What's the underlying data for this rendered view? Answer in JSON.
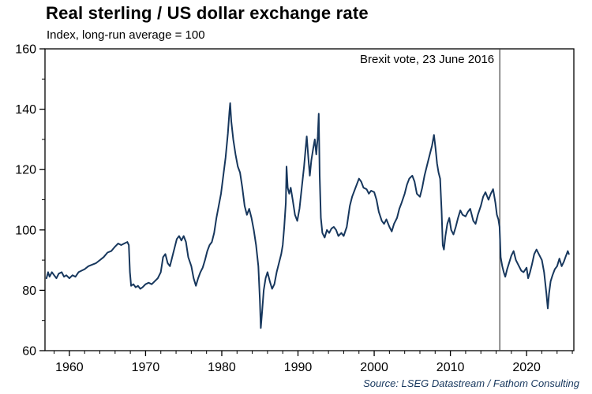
{
  "title": "Real sterling / US dollar exchange rate",
  "subtitle": "Index, long-run average = 100",
  "source": "Source: LSEG Datastream / Fathom Consulting",
  "colors": {
    "series_line": "#17375d",
    "axis": "#000000",
    "tick_label": "#000000",
    "event_line": "#444444",
    "annotation_text": "#000000",
    "source_text": "#17375d"
  },
  "chart_data": {
    "type": "line",
    "title": "Real sterling / US dollar exchange rate",
    "subtitle": "Index, long-run average = 100",
    "xlabel": "",
    "ylabel": "",
    "xlim": [
      1956.8,
      2026.2
    ],
    "ylim": [
      60,
      160
    ],
    "x_ticks": [
      1960,
      1970,
      1980,
      1990,
      2000,
      2010,
      2020
    ],
    "y_ticks": [
      60,
      80,
      100,
      120,
      140,
      160
    ],
    "x_minor_step": 2,
    "y_minor_step": 10,
    "grid": false,
    "legend": "none",
    "event_line": {
      "x": 2016.48,
      "label": "Brexit vote, 23 June 2016"
    },
    "series": [
      {
        "name": "Real sterling / US dollar exchange rate (index)",
        "points": [
          [
            1957.0,
            84
          ],
          [
            1957.2,
            86
          ],
          [
            1957.4,
            84.5
          ],
          [
            1957.7,
            86
          ],
          [
            1958.0,
            85
          ],
          [
            1958.3,
            84
          ],
          [
            1958.6,
            85.5
          ],
          [
            1959.0,
            86
          ],
          [
            1959.3,
            84.5
          ],
          [
            1959.6,
            85
          ],
          [
            1960.0,
            84
          ],
          [
            1960.4,
            85
          ],
          [
            1960.8,
            84.5
          ],
          [
            1961.2,
            86
          ],
          [
            1961.6,
            86.5
          ],
          [
            1962.0,
            87
          ],
          [
            1962.5,
            88
          ],
          [
            1963.0,
            88.5
          ],
          [
            1963.5,
            89
          ],
          [
            1964.0,
            90
          ],
          [
            1964.5,
            91
          ],
          [
            1965.0,
            92.5
          ],
          [
            1965.5,
            93
          ],
          [
            1966.0,
            94.5
          ],
          [
            1966.4,
            95.5
          ],
          [
            1966.8,
            95
          ],
          [
            1967.2,
            95.5
          ],
          [
            1967.6,
            96
          ],
          [
            1967.8,
            95
          ],
          [
            1967.95,
            86
          ],
          [
            1968.1,
            81.5
          ],
          [
            1968.4,
            82
          ],
          [
            1968.7,
            81
          ],
          [
            1969.0,
            81.5
          ],
          [
            1969.3,
            80.5
          ],
          [
            1969.6,
            81
          ],
          [
            1970.0,
            82
          ],
          [
            1970.4,
            82.5
          ],
          [
            1970.8,
            82
          ],
          [
            1971.2,
            83
          ],
          [
            1971.6,
            84
          ],
          [
            1972.0,
            86
          ],
          [
            1972.3,
            91
          ],
          [
            1972.6,
            92
          ],
          [
            1972.9,
            89
          ],
          [
            1973.2,
            88
          ],
          [
            1973.5,
            91
          ],
          [
            1973.8,
            94
          ],
          [
            1974.1,
            97
          ],
          [
            1974.4,
            98
          ],
          [
            1974.7,
            96.5
          ],
          [
            1975.0,
            98
          ],
          [
            1975.3,
            96
          ],
          [
            1975.6,
            91
          ],
          [
            1976.0,
            88
          ],
          [
            1976.3,
            84
          ],
          [
            1976.6,
            81.5
          ],
          [
            1976.9,
            84
          ],
          [
            1977.2,
            86
          ],
          [
            1977.5,
            87.5
          ],
          [
            1977.8,
            90
          ],
          [
            1978.1,
            93
          ],
          [
            1978.4,
            95
          ],
          [
            1978.7,
            96
          ],
          [
            1979.0,
            99
          ],
          [
            1979.3,
            104
          ],
          [
            1979.6,
            108
          ],
          [
            1979.9,
            112
          ],
          [
            1980.2,
            118
          ],
          [
            1980.5,
            124
          ],
          [
            1980.8,
            132
          ],
          [
            1981.0,
            139
          ],
          [
            1981.1,
            142
          ],
          [
            1981.25,
            136
          ],
          [
            1981.5,
            130
          ],
          [
            1981.8,
            125
          ],
          [
            1982.1,
            121
          ],
          [
            1982.4,
            119
          ],
          [
            1982.7,
            114
          ],
          [
            1983.0,
            108
          ],
          [
            1983.3,
            105
          ],
          [
            1983.6,
            107
          ],
          [
            1983.9,
            104
          ],
          [
            1984.2,
            100
          ],
          [
            1984.5,
            95
          ],
          [
            1984.8,
            88
          ],
          [
            1985.0,
            77
          ],
          [
            1985.12,
            67.5
          ],
          [
            1985.3,
            73
          ],
          [
            1985.5,
            80
          ],
          [
            1985.75,
            84
          ],
          [
            1986.0,
            86
          ],
          [
            1986.3,
            83
          ],
          [
            1986.6,
            80.5
          ],
          [
            1986.9,
            82
          ],
          [
            1987.2,
            86
          ],
          [
            1987.5,
            89
          ],
          [
            1987.8,
            92
          ],
          [
            1988.0,
            95
          ],
          [
            1988.2,
            101
          ],
          [
            1988.4,
            109
          ],
          [
            1988.5,
            121
          ],
          [
            1988.65,
            114
          ],
          [
            1988.85,
            112
          ],
          [
            1989.05,
            114
          ],
          [
            1989.3,
            110
          ],
          [
            1989.6,
            105
          ],
          [
            1989.9,
            103
          ],
          [
            1990.2,
            107
          ],
          [
            1990.5,
            114
          ],
          [
            1990.8,
            121
          ],
          [
            1991.0,
            127
          ],
          [
            1991.15,
            131
          ],
          [
            1991.35,
            124
          ],
          [
            1991.55,
            118
          ],
          [
            1991.75,
            123
          ],
          [
            1992.0,
            127
          ],
          [
            1992.2,
            130
          ],
          [
            1992.4,
            125
          ],
          [
            1992.6,
            131
          ],
          [
            1992.72,
            138.5
          ],
          [
            1992.85,
            118
          ],
          [
            1993.0,
            104
          ],
          [
            1993.2,
            99
          ],
          [
            1993.5,
            97.5
          ],
          [
            1993.8,
            100
          ],
          [
            1994.1,
            99
          ],
          [
            1994.4,
            100.5
          ],
          [
            1994.7,
            101
          ],
          [
            1995.0,
            100
          ],
          [
            1995.3,
            98
          ],
          [
            1995.7,
            99
          ],
          [
            1996.0,
            98
          ],
          [
            1996.4,
            101
          ],
          [
            1996.8,
            108
          ],
          [
            1997.1,
            111
          ],
          [
            1997.4,
            113
          ],
          [
            1997.7,
            115
          ],
          [
            1998.0,
            117
          ],
          [
            1998.3,
            116
          ],
          [
            1998.6,
            114
          ],
          [
            1999.0,
            113.5
          ],
          [
            1999.3,
            112
          ],
          [
            1999.6,
            113
          ],
          [
            2000.0,
            112.5
          ],
          [
            2000.3,
            110
          ],
          [
            2000.6,
            106
          ],
          [
            2001.0,
            103
          ],
          [
            2001.3,
            102
          ],
          [
            2001.6,
            103.5
          ],
          [
            2002.0,
            101
          ],
          [
            2002.3,
            99.5
          ],
          [
            2002.6,
            102
          ],
          [
            2003.0,
            104
          ],
          [
            2003.3,
            107
          ],
          [
            2003.6,
            109
          ],
          [
            2004.0,
            112
          ],
          [
            2004.3,
            115
          ],
          [
            2004.6,
            117
          ],
          [
            2005.0,
            118
          ],
          [
            2005.3,
            116
          ],
          [
            2005.6,
            112
          ],
          [
            2006.0,
            111
          ],
          [
            2006.3,
            114
          ],
          [
            2006.6,
            118
          ],
          [
            2007.0,
            122
          ],
          [
            2007.3,
            125
          ],
          [
            2007.6,
            128
          ],
          [
            2007.85,
            131.5
          ],
          [
            2008.05,
            127
          ],
          [
            2008.25,
            122
          ],
          [
            2008.45,
            119
          ],
          [
            2008.65,
            117
          ],
          [
            2008.85,
            106
          ],
          [
            2009.0,
            95
          ],
          [
            2009.15,
            93.5
          ],
          [
            2009.35,
            98
          ],
          [
            2009.6,
            102
          ],
          [
            2009.85,
            104
          ],
          [
            2010.1,
            100
          ],
          [
            2010.4,
            98.5
          ],
          [
            2010.7,
            101
          ],
          [
            2011.0,
            104
          ],
          [
            2011.3,
            106.5
          ],
          [
            2011.6,
            105
          ],
          [
            2012.0,
            104.5
          ],
          [
            2012.3,
            106
          ],
          [
            2012.6,
            107
          ],
          [
            2013.0,
            103
          ],
          [
            2013.3,
            102
          ],
          [
            2013.6,
            105
          ],
          [
            2014.0,
            108
          ],
          [
            2014.3,
            111
          ],
          [
            2014.6,
            112.5
          ],
          [
            2015.0,
            110
          ],
          [
            2015.3,
            112
          ],
          [
            2015.6,
            113.5
          ],
          [
            2015.9,
            109
          ],
          [
            2016.1,
            105
          ],
          [
            2016.3,
            103.5
          ],
          [
            2016.45,
            101
          ],
          [
            2016.6,
            91
          ],
          [
            2016.8,
            88
          ],
          [
            2017.0,
            86
          ],
          [
            2017.2,
            84.5
          ],
          [
            2017.45,
            87
          ],
          [
            2017.7,
            89
          ],
          [
            2018.0,
            91.5
          ],
          [
            2018.3,
            93
          ],
          [
            2018.6,
            90
          ],
          [
            2019.0,
            88
          ],
          [
            2019.3,
            86.5
          ],
          [
            2019.6,
            86
          ],
          [
            2020.0,
            87.5
          ],
          [
            2020.2,
            84
          ],
          [
            2020.45,
            86
          ],
          [
            2020.7,
            88.5
          ],
          [
            2021.0,
            92
          ],
          [
            2021.3,
            93.5
          ],
          [
            2021.6,
            92
          ],
          [
            2022.0,
            90
          ],
          [
            2022.3,
            86
          ],
          [
            2022.6,
            79
          ],
          [
            2022.78,
            74
          ],
          [
            2022.95,
            79
          ],
          [
            2023.15,
            83
          ],
          [
            2023.4,
            85
          ],
          [
            2023.7,
            87
          ],
          [
            2024.0,
            88
          ],
          [
            2024.3,
            90.5
          ],
          [
            2024.6,
            88
          ],
          [
            2024.9,
            89.5
          ],
          [
            2025.1,
            91
          ],
          [
            2025.4,
            93
          ],
          [
            2025.55,
            92
          ]
        ]
      }
    ]
  }
}
